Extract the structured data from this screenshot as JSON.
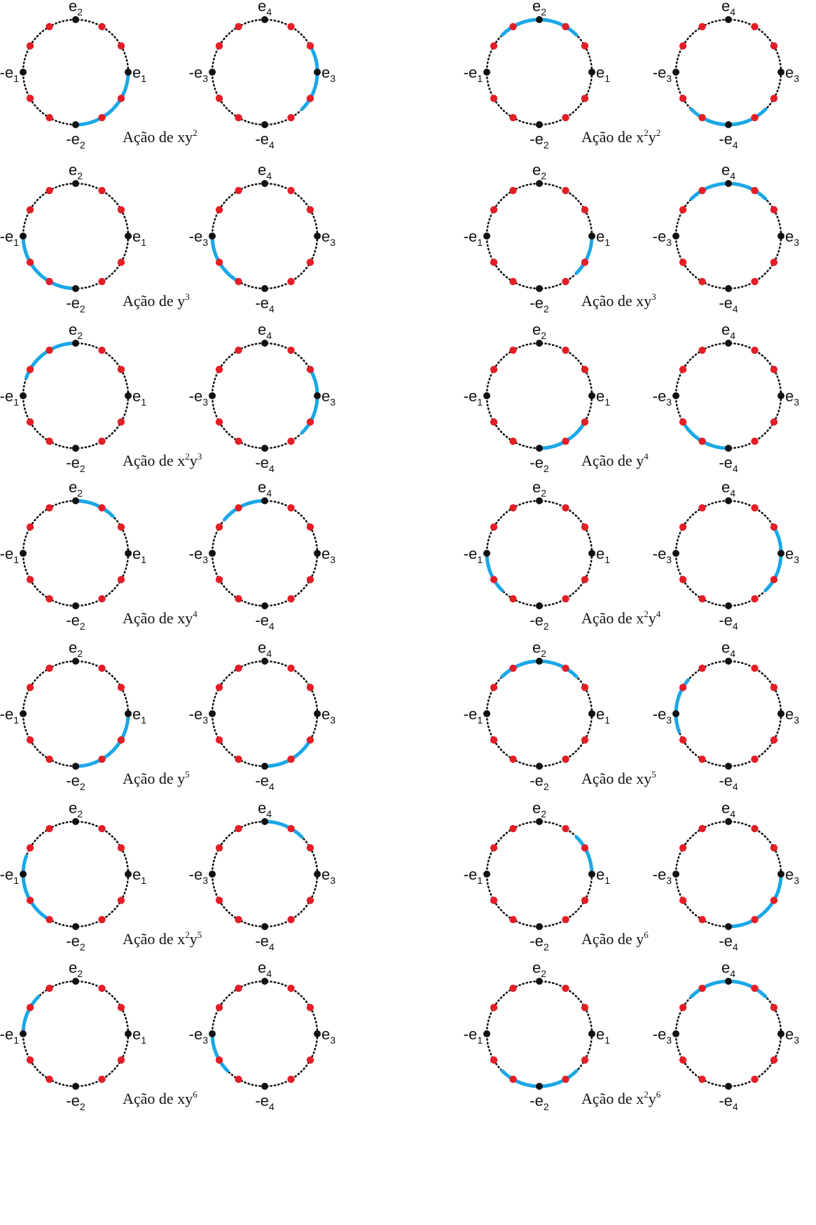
{
  "colors": {
    "dot_red": "#e41e26",
    "dot_black": "#111111",
    "arc": "#1aa7e6",
    "dotted": "#111111"
  },
  "vertex_names": {
    "left_circle": [
      "e₁",
      "e₂",
      "-e₁",
      "-e₂"
    ],
    "right_circle": [
      "e₃",
      "e₄",
      "-e₃",
      "-e₄"
    ]
  },
  "panels": [
    {
      "caption": "Ação de xy²",
      "caption_base": "Ação de ",
      "caption_parts": [
        [
          "x",
          ""
        ],
        [
          "y",
          "2"
        ]
      ],
      "highlight_left": [
        "-e2",
        "e1"
      ],
      "highlight_right": [
        "-e4",
        "e3"
      ]
    },
    {
      "caption": "Ação de x²y²",
      "caption_base": "Ação de ",
      "caption_parts": [
        [
          "x",
          "2"
        ],
        [
          "y",
          "2"
        ]
      ],
      "highlight_left": [
        "e2-arc"
      ],
      "highlight_right": [
        "-e3",
        "e3 bottom"
      ]
    },
    {
      "caption": "Ação de y³",
      "caption_base": "Ação de ",
      "caption_parts": [
        [
          "y",
          "3"
        ]
      ],
      "highlight_left": [
        "-e1",
        "-e2"
      ],
      "highlight_right": [
        "-e3",
        "-e4"
      ]
    },
    {
      "caption": "Ação de xy³",
      "caption_base": "Ação de ",
      "caption_parts": [
        [
          "x",
          ""
        ],
        [
          "y",
          "3"
        ]
      ],
      "highlight_left": [
        "e1"
      ],
      "highlight_right": [
        "e4"
      ]
    },
    {
      "caption": "Ação de x²y³",
      "caption_base": "Ação de ",
      "caption_parts": [
        [
          "x",
          "2"
        ],
        [
          "y",
          "3"
        ]
      ],
      "highlight_left": [
        "-e1",
        "e2"
      ],
      "highlight_right": [
        "e3",
        "-e4"
      ]
    },
    {
      "caption": "Ação de y⁴",
      "caption_base": "Ação de ",
      "caption_parts": [
        [
          "y",
          "4"
        ]
      ],
      "highlight_left": [
        "-e2"
      ],
      "highlight_right": [
        "-e3",
        "-e4"
      ]
    },
    {
      "caption": "Ação de xy⁴",
      "caption_base": "Ação de ",
      "caption_parts": [
        [
          "x",
          ""
        ],
        [
          "y",
          "4"
        ]
      ],
      "highlight_left": [
        "e2"
      ],
      "highlight_right": [
        "e4"
      ]
    },
    {
      "caption": "Ação de x²y⁴",
      "caption_base": "Ação de ",
      "caption_parts": [
        [
          "x",
          "2"
        ],
        [
          "y",
          "4"
        ]
      ],
      "highlight_left": [
        "-e1"
      ],
      "highlight_right": [
        "e3"
      ]
    },
    {
      "caption": "Ação de y⁵",
      "caption_base": "Ação de ",
      "caption_parts": [
        [
          "y",
          "5"
        ]
      ],
      "highlight_left": [
        "e1",
        "-e2"
      ],
      "highlight_right": [
        "-e4",
        "e3"
      ]
    },
    {
      "caption": "Ação de xy⁵",
      "caption_base": "Ação de ",
      "caption_parts": [
        [
          "x",
          ""
        ],
        [
          "y",
          "5"
        ]
      ],
      "highlight_left": [
        "e2"
      ],
      "highlight_right": [
        "-e3"
      ]
    },
    {
      "caption": "Ação de x²y⁵",
      "caption_base": "Ação de ",
      "caption_parts": [
        [
          "x",
          "2"
        ],
        [
          "y",
          "5"
        ]
      ],
      "highlight_left": [
        "-e1"
      ],
      "highlight_right": [
        "e4"
      ]
    },
    {
      "caption": "Ação de y⁶",
      "caption_base": "Ação de ",
      "caption_parts": [
        [
          "y",
          "6"
        ]
      ],
      "highlight_left": [
        "e1"
      ],
      "highlight_right": [
        "e3",
        "-e4"
      ]
    },
    {
      "caption": "Ação de xy⁶",
      "caption_base": "Ação de ",
      "caption_parts": [
        [
          "x",
          ""
        ],
        [
          "y",
          "6"
        ]
      ],
      "highlight_left": [
        "-e1"
      ],
      "highlight_right": [
        "-e3"
      ]
    },
    {
      "caption": "Ação de x²y⁶",
      "caption_base": "Ação de ",
      "caption_parts": [
        [
          "x",
          "2"
        ],
        [
          "y",
          "6"
        ]
      ],
      "highlight_left": [
        "-e2"
      ],
      "highlight_right": [
        "e4"
      ]
    }
  ]
}
